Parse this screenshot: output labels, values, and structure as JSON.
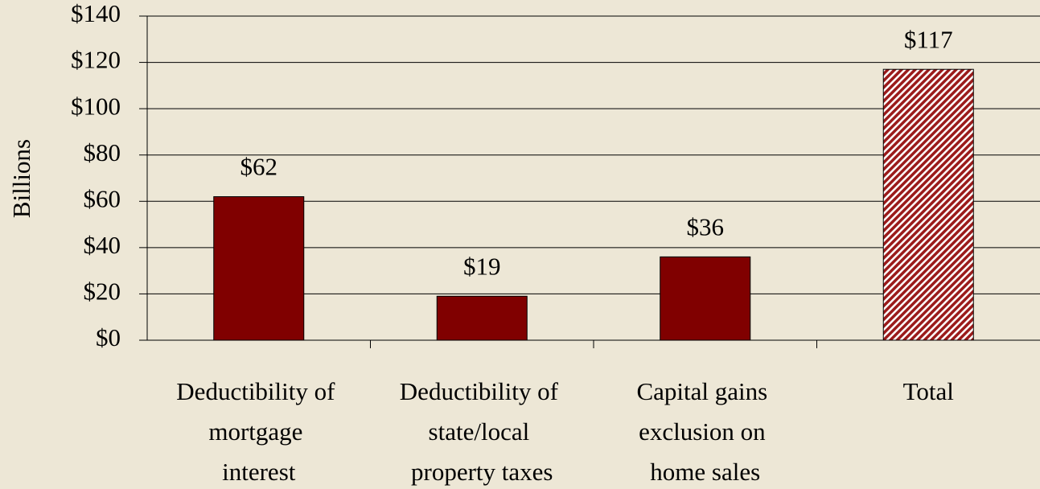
{
  "chart_data": {
    "type": "bar",
    "y_label": "Billions",
    "categories": [
      "Deductibility of mortgage interest",
      "Deductibility of state/local property taxes",
      "Capital gains exclusion on home sales",
      "Total"
    ],
    "values": [
      62,
      19,
      36,
      117
    ],
    "value_labels": [
      "$62",
      "$19",
      "$36",
      "$117"
    ],
    "color": "#800000",
    "hatch": [
      false,
      false,
      false,
      true
    ],
    "ylim": [
      0,
      140
    ],
    "yticks": [
      {
        "value": 0,
        "label": "$0"
      },
      {
        "value": 20,
        "label": "$20"
      },
      {
        "value": 40,
        "label": "$40"
      },
      {
        "value": 60,
        "label": "$60"
      },
      {
        "value": 80,
        "label": "$80"
      },
      {
        "value": 100,
        "label": "$100"
      },
      {
        "value": 120,
        "label": "$120"
      },
      {
        "value": 140,
        "label": "$140"
      }
    ],
    "grid": true
  }
}
